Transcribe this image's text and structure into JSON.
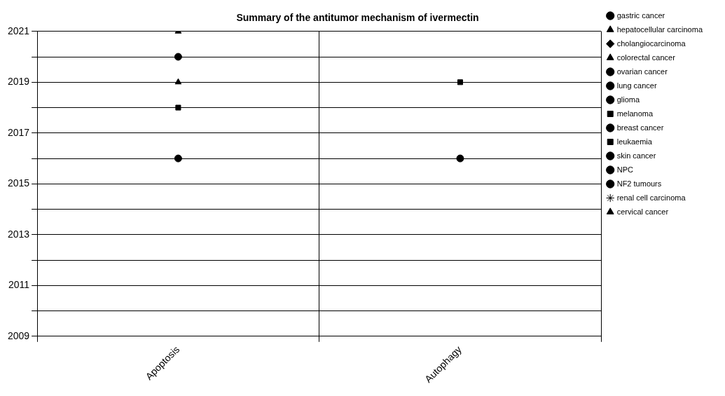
{
  "chart_data": {
    "type": "scatter",
    "title": "Summary of the antitumor mechanism of ivermectin",
    "categories": [
      "Apoptosis",
      "Autophagy"
    ],
    "series": [
      {
        "name": "gastric cancer",
        "color": "#000000",
        "marker": "circle",
        "values": [
          2016,
          null
        ]
      },
      {
        "name": "hepatocellular carcinoma",
        "color": "#000000",
        "marker": "triangle",
        "values": [
          2021,
          null
        ]
      },
      {
        "name": "cholangiocarcinoma",
        "color": "#000000",
        "marker": "diamond",
        "values": [
          null,
          null
        ]
      },
      {
        "name": "colorectal cancer",
        "color": "#000000",
        "marker": "triangle",
        "values": [
          null,
          null
        ]
      },
      {
        "name": "ovarian cancer",
        "color": "#000000",
        "marker": "circle",
        "values": [
          2020,
          null
        ]
      },
      {
        "name": "lung cancer",
        "color": "#000000",
        "marker": "circle",
        "values": [
          null,
          null
        ]
      },
      {
        "name": "glioma",
        "color": "#000000",
        "marker": "circle",
        "values": [
          null,
          null
        ]
      },
      {
        "name": "melanoma",
        "color": "#000000",
        "marker": "square",
        "values": [
          null,
          2019
        ]
      },
      {
        "name": "breast cancer",
        "color": "#000000",
        "marker": "circle",
        "values": [
          null,
          2016
        ]
      },
      {
        "name": "leukaemia",
        "color": "#000000",
        "marker": "square",
        "values": [
          2018,
          null
        ]
      },
      {
        "name": "skin cancer",
        "color": "#000000",
        "marker": "circle",
        "values": [
          null,
          null
        ]
      },
      {
        "name": "NPC",
        "color": "#000000",
        "marker": "circle",
        "values": [
          null,
          null
        ]
      },
      {
        "name": "NF2 tumours",
        "color": "#000000",
        "marker": "circle",
        "values": [
          null,
          null
        ]
      },
      {
        "name": "renal cell carcinoma",
        "color": "#000000",
        "marker": "star",
        "values": [
          null,
          null
        ]
      },
      {
        "name": "cervical cancer",
        "color": "#000000",
        "marker": "triangle",
        "values": [
          2019,
          null
        ]
      }
    ],
    "ylim": [
      2009,
      2021
    ],
    "yticks": [
      2009,
      {
        "value": 2010,
        "label": null
      },
      2011,
      {
        "value": 2012,
        "label": null
      },
      2013,
      {
        "value": 2014,
        "label": null
      },
      2015,
      {
        "value": 2016,
        "label": null
      },
      2017,
      {
        "value": 2018,
        "label": null
      },
      2019,
      {
        "value": 2020,
        "label": null
      },
      2021
    ],
    "grid": true,
    "legend": "right"
  }
}
